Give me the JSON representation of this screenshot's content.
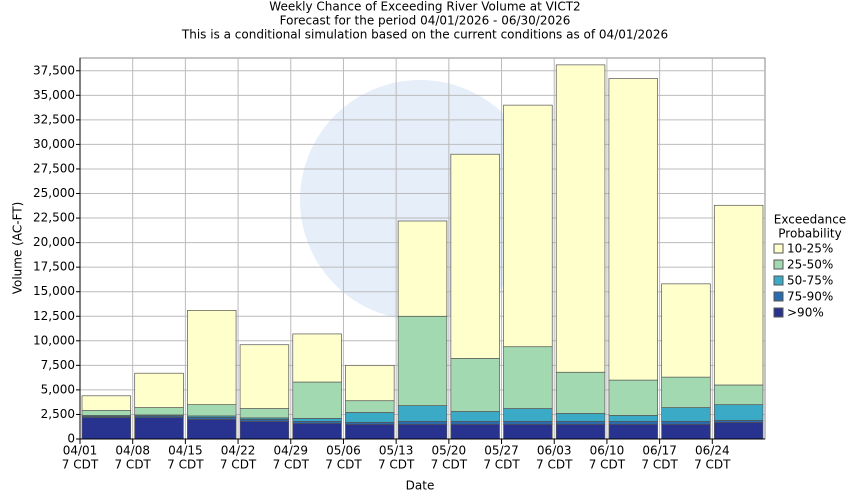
{
  "chart_data": {
    "type": "stacked_bar",
    "title": "Weekly Chance of Exceeding River Volume at VICT2",
    "subtitle": "Forecast for the period 04/01/2026 - 06/30/2026",
    "note": "This is a conditional simulation based on the current conditions as of 04/01/2026",
    "x_label": "Date",
    "y_label": "Volume (AC-FT)",
    "legend_title": [
      "Exceedance",
      "Probability"
    ],
    "categories": [
      "04/01",
      "04/08",
      "04/15",
      "04/22",
      "04/29",
      "05/06",
      "05/13",
      "05/20",
      "05/27",
      "06/03",
      "06/10",
      "06/17",
      "06/24"
    ],
    "category_sublabels": [
      "7 CDT",
      "7 CDT",
      "7 CDT",
      "7 CDT",
      "7 CDT",
      "7 CDT",
      "7 CDT",
      "7 CDT",
      "7 CDT",
      "7 CDT",
      "7 CDT",
      "7 CDT",
      "7 CDT"
    ],
    "series": [
      {
        "name": ">90%",
        "color": "#28338f",
        "values": [
          2200,
          2200,
          2000,
          1800,
          1600,
          1500,
          1500,
          1500,
          1500,
          1500,
          1500,
          1500,
          1700
        ]
      },
      {
        "name": "75-90%",
        "color": "#2a6cb0",
        "values": [
          100,
          150,
          200,
          200,
          200,
          200,
          300,
          300,
          300,
          300,
          300,
          300,
          200
        ]
      },
      {
        "name": "50-75%",
        "color": "#3aaac6",
        "values": [
          100,
          100,
          150,
          150,
          300,
          1000,
          1600,
          1000,
          1300,
          800,
          600,
          1400,
          1600
        ]
      },
      {
        "name": "25-50%",
        "color": "#a3d9b1",
        "values": [
          500,
          750,
          1150,
          950,
          3700,
          1200,
          9100,
          5400,
          6300,
          4200,
          3600,
          3100,
          2000
        ]
      },
      {
        "name": "10-25%",
        "color": "#ffffcc",
        "values": [
          1500,
          3500,
          9600,
          6500,
          4900,
          3600,
          9700,
          20800,
          24600,
          31300,
          30700,
          9500,
          18300
        ]
      }
    ],
    "ylim": [
      0,
      38800
    ],
    "yticks": [
      0,
      {
        "value": 2500,
        "label": "2,500"
      },
      {
        "value": 5000,
        "label": "5,000"
      },
      {
        "value": 7500,
        "label": "7,500"
      },
      {
        "value": 10000,
        "label": "10,000"
      },
      {
        "value": 12500,
        "label": "12,500"
      },
      {
        "value": 15000,
        "label": "15,000"
      },
      {
        "value": 17500,
        "label": "17,500"
      },
      {
        "value": 20000,
        "label": "20,000"
      },
      {
        "value": 22500,
        "label": "22,500"
      },
      {
        "value": 25000,
        "label": "25,000"
      },
      {
        "value": 27500,
        "label": "27,500"
      },
      {
        "value": 30000,
        "label": "30,000"
      },
      {
        "value": 32500,
        "label": "32,500"
      },
      {
        "value": 35000,
        "label": "35,000"
      },
      {
        "value": 37500,
        "label": "37,500"
      }
    ],
    "grid": true
  }
}
